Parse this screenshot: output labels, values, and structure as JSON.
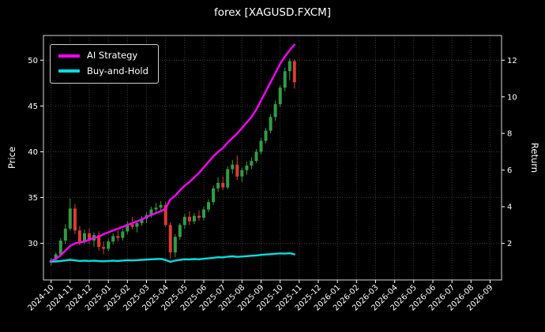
{
  "chart_data": {
    "type": "candlestick+line",
    "title": "forex [XAGUSD.FXCM]",
    "ylabel_left": "Price",
    "ylabel_right": "Return",
    "grid": true,
    "legend_position": "upper-left",
    "x_tick_labels": [
      "2024-10",
      "2024-11",
      "2024-12",
      "2025-01",
      "2025-02",
      "2025-03",
      "2025-04",
      "2025-05",
      "2025-06",
      "2025-07",
      "2025-08",
      "2025-09",
      "2025-10",
      "2025-11",
      "2025-12",
      "2026-01",
      "2026-02",
      "2026-03",
      "2026-04",
      "2026-05",
      "2026-06",
      "2026-07",
      "2026-08",
      "2026-09"
    ],
    "y_left_ticks": [
      30,
      35,
      40,
      45,
      50
    ],
    "y_right_ticks": [
      2,
      4,
      6,
      8,
      10,
      12
    ],
    "y_left_range": [
      26.0,
      52.7
    ],
    "y_right_range": [
      0,
      13.35
    ],
    "x_range_months": [
      -0.4,
      23.6
    ],
    "candles": {
      "t": [
        0,
        0.25,
        0.5,
        0.75,
        1,
        1.25,
        1.5,
        1.75,
        2,
        2.25,
        2.5,
        2.75,
        3,
        3.25,
        3.5,
        3.75,
        4,
        4.25,
        4.5,
        4.75,
        5,
        5.25,
        5.5,
        5.75,
        6,
        6.25,
        6.5,
        6.75,
        7,
        7.25,
        7.5,
        7.75,
        8,
        8.25,
        8.5,
        8.75,
        9,
        9.25,
        9.5,
        9.75,
        10,
        10.25,
        10.5,
        10.75,
        11,
        11.25,
        11.5,
        11.75,
        12,
        12.25,
        12.5,
        12.75
      ],
      "open": [
        27.9,
        28.2,
        28.8,
        30.3,
        31.6,
        33.8,
        31.4,
        30.2,
        31.1,
        30.3,
        30.9,
        29.6,
        29.4,
        30.2,
        30.8,
        30.6,
        31.3,
        32.1,
        31.8,
        32.2,
        32.7,
        33.1,
        33.7,
        33.9,
        34.2,
        32.0,
        29.0,
        30.7,
        32.0,
        32.9,
        32.4,
        33.0,
        32.8,
        33.7,
        34.5,
        36.0,
        36.6,
        36.1,
        38.1,
        38.6,
        37.3,
        38.0,
        38.5,
        39.0,
        40.0,
        41.2,
        42.3,
        43.8,
        45.2,
        47.0,
        48.8,
        49.9
      ],
      "high": [
        28.4,
        29.0,
        30.6,
        32.1,
        34.9,
        34.3,
        31.9,
        31.5,
        31.6,
        31.2,
        31.3,
        30.2,
        30.5,
        31.1,
        31.4,
        31.6,
        32.4,
        32.9,
        32.5,
        33.0,
        33.4,
        34.0,
        34.4,
        34.6,
        34.5,
        32.3,
        31.0,
        32.2,
        33.2,
        33.5,
        33.3,
        33.6,
        34.0,
        34.8,
        36.3,
        37.2,
        37.3,
        38.4,
        39.1,
        39.6,
        38.3,
        38.9,
        39.4,
        40.3,
        41.5,
        42.6,
        44.1,
        45.6,
        47.3,
        49.2,
        50.2,
        50.1
      ],
      "low": [
        27.6,
        27.9,
        28.6,
        29.9,
        31.4,
        31.0,
        29.8,
        29.9,
        29.9,
        29.6,
        29.2,
        28.8,
        29.1,
        29.9,
        30.2,
        30.3,
        31.0,
        31.5,
        31.2,
        31.9,
        32.2,
        32.8,
        33.2,
        33.5,
        31.8,
        28.3,
        28.5,
        30.4,
        31.6,
        32.0,
        32.1,
        32.5,
        32.5,
        33.4,
        34.2,
        35.6,
        35.8,
        35.9,
        37.6,
        36.9,
        36.7,
        37.5,
        38.1,
        38.8,
        39.7,
        40.9,
        42.0,
        43.4,
        44.9,
        46.6,
        47.8,
        46.9
      ],
      "close": [
        28.2,
        28.8,
        30.3,
        31.6,
        33.8,
        31.4,
        30.2,
        31.1,
        30.3,
        30.9,
        29.6,
        29.4,
        30.2,
        30.8,
        30.6,
        31.3,
        32.1,
        31.8,
        32.2,
        32.7,
        33.1,
        33.7,
        33.9,
        34.2,
        32.0,
        29.0,
        30.7,
        32.0,
        32.9,
        32.4,
        33.0,
        32.8,
        33.7,
        34.5,
        36.0,
        36.6,
        36.1,
        38.1,
        38.6,
        37.3,
        38.0,
        38.5,
        39.0,
        40.0,
        41.2,
        42.3,
        43.8,
        45.2,
        47.0,
        48.8,
        49.9,
        47.6
      ]
    },
    "series": [
      {
        "name": "AI Strategy",
        "color": "#ff00ff",
        "axis": "right",
        "t": [
          0,
          0.25,
          0.5,
          0.75,
          1,
          1.25,
          1.5,
          1.75,
          2,
          2.25,
          2.5,
          2.75,
          3,
          3.25,
          3.5,
          3.75,
          4,
          4.25,
          4.5,
          4.75,
          5,
          5.25,
          5.5,
          5.75,
          6,
          6.25,
          6.5,
          6.75,
          7,
          7.25,
          7.5,
          7.75,
          8,
          8.25,
          8.5,
          8.75,
          9,
          9.25,
          9.5,
          9.75,
          10,
          10.25,
          10.5,
          10.75,
          11,
          11.25,
          11.5,
          11.75,
          12,
          12.25,
          12.5,
          12.75
        ],
        "values": [
          1.05,
          1.15,
          1.35,
          1.6,
          1.85,
          2.0,
          2.05,
          2.1,
          2.2,
          2.3,
          2.35,
          2.5,
          2.6,
          2.7,
          2.8,
          2.9,
          3.0,
          3.1,
          3.2,
          3.3,
          3.45,
          3.55,
          3.65,
          3.75,
          3.9,
          4.4,
          4.6,
          4.9,
          5.15,
          5.35,
          5.6,
          5.85,
          6.15,
          6.45,
          6.75,
          7.0,
          7.2,
          7.5,
          7.75,
          8.0,
          8.3,
          8.6,
          8.9,
          9.3,
          9.8,
          10.3,
          10.8,
          11.3,
          11.8,
          12.2,
          12.55,
          12.85
        ]
      },
      {
        "name": "Buy-and-Hold",
        "color": "#00e0e0",
        "axis": "right",
        "t": [
          0,
          0.25,
          0.5,
          0.75,
          1,
          1.25,
          1.5,
          1.75,
          2,
          2.25,
          2.5,
          2.75,
          3,
          3.25,
          3.5,
          3.75,
          4,
          4.25,
          4.5,
          4.75,
          5,
          5.25,
          5.5,
          5.75,
          6,
          6.25,
          6.5,
          6.75,
          7,
          7.25,
          7.5,
          7.75,
          8,
          8.25,
          8.5,
          8.75,
          9,
          9.25,
          9.5,
          9.75,
          10,
          10.25,
          10.5,
          10.75,
          11,
          11.25,
          11.5,
          11.75,
          12,
          12.25,
          12.5,
          12.75
        ],
        "values": [
          1.0,
          1.01,
          1.04,
          1.07,
          1.1,
          1.07,
          1.04,
          1.05,
          1.04,
          1.05,
          1.03,
          1.02,
          1.04,
          1.05,
          1.04,
          1.06,
          1.08,
          1.07,
          1.08,
          1.1,
          1.11,
          1.13,
          1.14,
          1.15,
          1.09,
          0.99,
          1.06,
          1.1,
          1.13,
          1.12,
          1.14,
          1.13,
          1.16,
          1.18,
          1.21,
          1.24,
          1.23,
          1.27,
          1.29,
          1.26,
          1.28,
          1.3,
          1.32,
          1.34,
          1.37,
          1.39,
          1.41,
          1.43,
          1.45,
          1.44,
          1.46,
          1.4
        ]
      }
    ],
    "colors": {
      "background": "#000000",
      "foreground": "#ffffff",
      "grid": "#4a4a4a",
      "spine": "#d9d9d9",
      "candle_up": "#2f9e44",
      "candle_down": "#dc3c32"
    }
  },
  "legend": {
    "entries": [
      {
        "label": "AI Strategy",
        "color": "#ff00ff"
      },
      {
        "label": "Buy-and-Hold",
        "color": "#00e0e0"
      }
    ]
  }
}
